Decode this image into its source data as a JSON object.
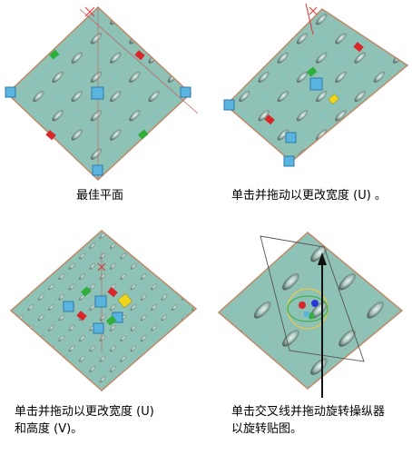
{
  "captions": {
    "best_plane": "最佳平面",
    "drag_width": "单击并拖动以更改宽度 (U) 。",
    "drag_width_height_line1": "单击并拖动以更改宽度 (U)",
    "drag_width_height_line2": "和高度 (V)。",
    "rotate_line1": "单击交叉线并拖动旋转操纵器",
    "rotate_line2": "以旋转贴图。"
  },
  "colors": {
    "plane": "#8fc1b4",
    "grid": "#6ad0d8",
    "edge": "#c08a6a",
    "handle_blue": "#5ab4e0",
    "handle_green": "#2fae3a",
    "handle_red": "#d8262a",
    "handle_yellow": "#f2d61c",
    "manip_arrow": "#111111"
  }
}
